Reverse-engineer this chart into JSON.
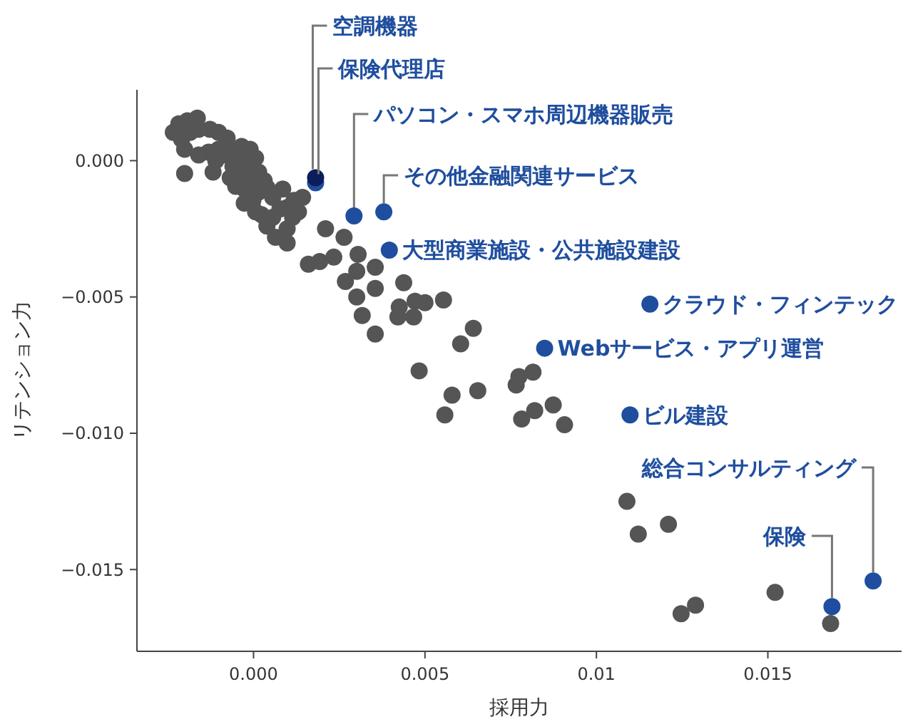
{
  "chart_data": {
    "type": "scatter",
    "xlabel": "採用力",
    "ylabel": "リテンション力",
    "xlim": [
      -0.0034,
      0.0189
    ],
    "ylim": [
      -0.018,
      0.0026
    ],
    "xticks": [
      {
        "value": 0,
        "label": "0.000"
      },
      0.005,
      0.01,
      0.015
    ],
    "yticks": [
      {
        "value": 0,
        "label": "0.000"
      },
      {
        "value": -0.005,
        "label": "−0.005"
      },
      {
        "value": -0.01,
        "label": "−0.010"
      },
      {
        "value": -0.015,
        "label": "−0.015"
      }
    ],
    "grid": false,
    "marker": "circle",
    "series": [
      {
        "color": "#555555",
        "x": [
          -0.00234,
          -0.00218,
          -0.00193,
          -0.00164,
          -0.0021,
          -0.00185,
          -0.0016,
          -0.00102,
          -0.00131,
          -0.0016,
          -0.0011,
          -0.00081,
          -0.0006,
          -0.0006,
          -0.00035,
          -0.00019,
          -0.00044,
          -0.00068,
          -0.0001,
          0.00031,
          -0.00027,
          0.00015,
          0.00039,
          -2e-05,
          0.00056,
          0.00077,
          0.00023,
          0.00056,
          -0.00035,
          6e-05,
          -0.0001,
          0.00098,
          0.00114,
          0.00015,
          -0.00077,
          -0.00127,
          -0.00102,
          -0.00201,
          -0.00052,
          -0.00027,
          6e-05,
          0.00039,
          0.00064,
          0.00098,
          0.00143,
          -0.00118,
          -0.00201,
          0.00085,
          0.00118,
          0.00131,
          0.00098,
          0.0016,
          0.00193,
          0.00234,
          0.0021,
          0.00264,
          0.00305,
          0.00355,
          0.00301,
          0.00268,
          0.00355,
          0.00301,
          0.00317,
          0.00355,
          0.00438,
          0.00471,
          0.005,
          0.00554,
          0.00425,
          0.00421,
          0.00467,
          0.00641,
          0.00604,
          0.00483,
          0.00579,
          0.00654,
          0.00558,
          0.00774,
          0.00766,
          0.00815,
          0.00874,
          0.0082,
          0.00782,
          0.00907,
          0.01089,
          0.01122,
          0.0121,
          0.01289,
          0.01247,
          0.01521,
          0.01683
        ],
        "values": [
          0.00104,
          0.00135,
          0.00146,
          0.00156,
          0.00078,
          0.00104,
          0.00115,
          0.00042,
          0.00031,
          0.00021,
          0,
          0.00021,
          0.00036,
          -0.00021,
          0,
          -0.00031,
          -0.00063,
          -0.00063,
          -0.00083,
          -0.00073,
          -0.00104,
          -0.00115,
          -0.00099,
          -0.00146,
          -0.00135,
          -0.00177,
          -0.00198,
          -0.00208,
          0.00052,
          0.0001,
          0.00042,
          -0.00172,
          -0.00208,
          -0.00042,
          0.00083,
          0.00115,
          0.00104,
          0.00042,
          -0.00094,
          -0.00156,
          -0.00188,
          -0.0024,
          -0.00281,
          -0.0025,
          -0.00135,
          -0.00042,
          -0.00047,
          -0.00104,
          -0.00146,
          -0.00188,
          -0.00302,
          -0.0038,
          -0.0037,
          -0.00354,
          -0.0025,
          -0.00281,
          -0.00344,
          -0.00391,
          -0.00406,
          -0.00443,
          -0.00469,
          -0.005,
          -0.00568,
          -0.00636,
          -0.00448,
          -0.00516,
          -0.00521,
          -0.00511,
          -0.00537,
          -0.00573,
          -0.00573,
          -0.00615,
          -0.00672,
          -0.00771,
          -0.0086,
          -0.00844,
          -0.00933,
          -0.00792,
          -0.00823,
          -0.00776,
          -0.00896,
          -0.00917,
          -0.00948,
          -0.00969,
          -0.0125,
          -0.0137,
          -0.01334,
          -0.01631,
          -0.01662,
          -0.01584,
          -0.01698
        ]
      },
      {
        "colors": [
          "#1f4e9e",
          "#0b1d5a",
          "#1f4e9e",
          "#1f4e9e",
          "#1f4e9e",
          "#1f4e9e",
          "#1f4e9e",
          "#1f4e9e",
          "#1f4e9e",
          "#1f4e9e"
        ],
        "x": [
          0.00181,
          0.00181,
          0.00293,
          0.0038,
          0.00396,
          0.01156,
          0.00849,
          0.01098,
          0.01807,
          0.01687
        ],
        "values": [
          -0.00081,
          -0.00063,
          -0.00203,
          -0.00188,
          -0.00328,
          -0.00526,
          -0.00688,
          -0.00933,
          -0.01542,
          -0.01636
        ]
      }
    ],
    "annotations": [
      {
        "text": "空調機器",
        "x": 0.00181,
        "y": -0.00063
      },
      {
        "text": "保険代理店",
        "x": 0.00181,
        "y": -0.00081
      },
      {
        "text": "パソコン・スマホ周辺機器販売",
        "x": 0.00293,
        "y": -0.00203
      },
      {
        "text": "その他金融関連サービス",
        "x": 0.0038,
        "y": -0.00188
      },
      {
        "text": "大型商業施設・公共施設建設",
        "x": 0.00396,
        "y": -0.00328
      },
      {
        "text": "クラウド・フィンテック",
        "x": 0.01156,
        "y": -0.00526
      },
      {
        "text": "Webサービス・アプリ運営",
        "x": 0.00849,
        "y": -0.00688
      },
      {
        "text": "ビル建設",
        "x": 0.01098,
        "y": -0.00933
      },
      {
        "text": "総合コンサルティング",
        "x": 0.01807,
        "y": -0.01542
      },
      {
        "text": "保険",
        "x": 0.01687,
        "y": -0.01636
      }
    ]
  }
}
